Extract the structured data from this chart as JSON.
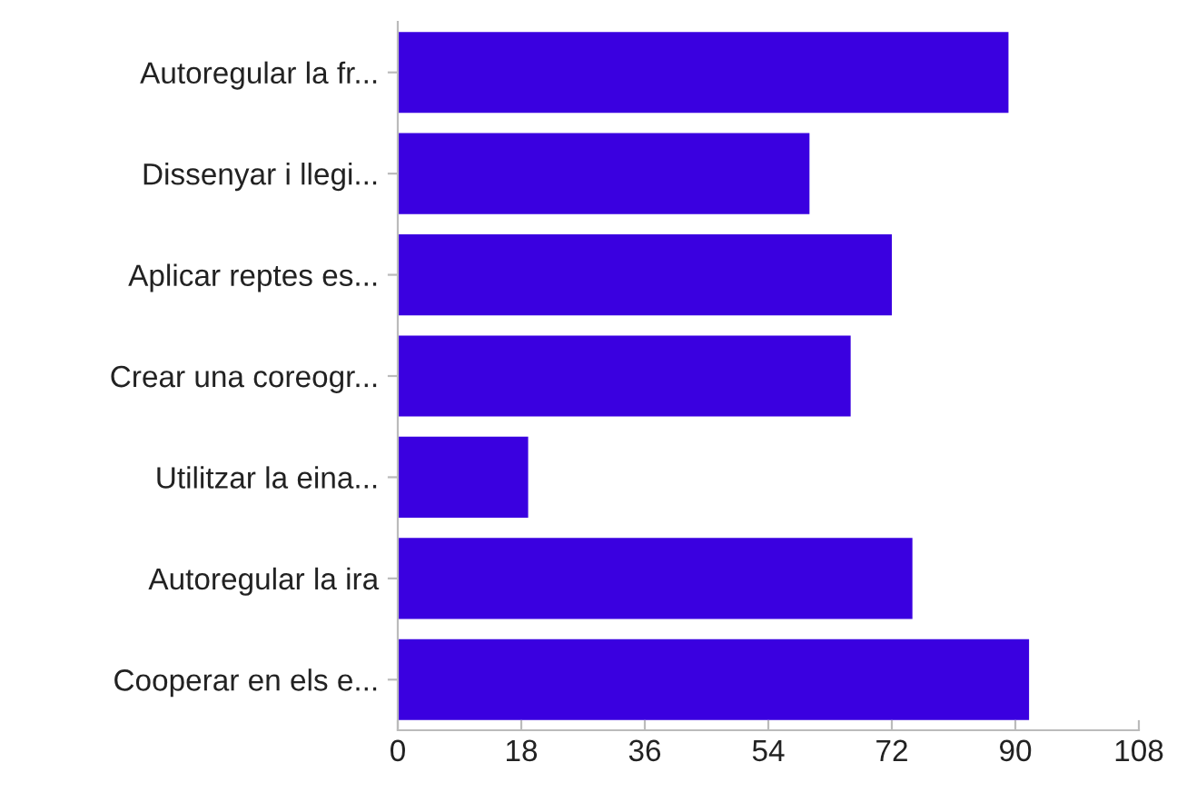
{
  "chart_data": {
    "type": "bar",
    "orientation": "horizontal",
    "categories": [
      "Autoregular la fr...",
      "Dissenyar i llegi...",
      "Aplicar reptes es...",
      "Crear una coreogr...",
      "Utilitzar la eina...",
      "Autoregular la ira",
      "Cooperar en els e..."
    ],
    "values": [
      89,
      60,
      72,
      66,
      19,
      75,
      92
    ],
    "color": "#3a00e0",
    "xlim": [
      0,
      108
    ],
    "xticks": [
      0,
      18,
      36,
      54,
      72,
      90,
      108
    ],
    "grid": false,
    "legend": false
  }
}
